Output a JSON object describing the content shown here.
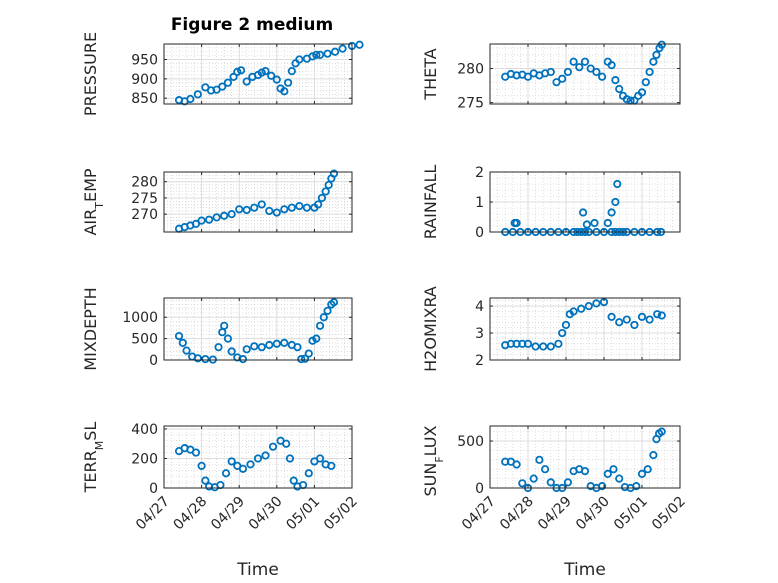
{
  "figure_title": "Figure 2 medium",
  "marker_color": "#0072BD",
  "chart_data": [
    {
      "type": "scatter",
      "title": "Figure 2 medium",
      "xlabel": "",
      "ylabel": "PRESSURE",
      "xlim": [
        "04/27",
        "05/02"
      ],
      "xticklabels": [],
      "ylim": [
        835,
        990
      ],
      "yticks": [
        850,
        900,
        950
      ],
      "grid": true,
      "x": [
        0.4,
        0.55,
        0.7,
        0.9,
        1.1,
        1.25,
        1.4,
        1.55,
        1.7,
        1.85,
        1.95,
        2.05,
        2.2,
        2.35,
        2.5,
        2.6,
        2.7,
        2.85,
        3.0,
        3.1,
        3.2,
        3.3,
        3.4,
        3.5,
        3.6,
        3.8,
        3.95,
        4.05,
        4.15,
        4.35,
        4.55,
        4.75,
        5.0,
        5.2
      ],
      "y": [
        845,
        842,
        848,
        860,
        878,
        870,
        872,
        880,
        890,
        905,
        918,
        922,
        893,
        905,
        910,
        916,
        920,
        908,
        898,
        875,
        868,
        890,
        920,
        940,
        950,
        952,
        958,
        962,
        962,
        965,
        970,
        978,
        985,
        988
      ]
    },
    {
      "type": "scatter",
      "xlabel": "",
      "ylabel": "THETA",
      "xlim": [
        "04/27",
        "05/02"
      ],
      "xticklabels": [],
      "ylim": [
        274.8,
        283.6
      ],
      "yticks": [
        275,
        280
      ],
      "grid": true,
      "x": [
        0.4,
        0.55,
        0.7,
        0.85,
        1.0,
        1.15,
        1.3,
        1.45,
        1.6,
        1.75,
        1.9,
        2.05,
        2.2,
        2.35,
        2.5,
        2.65,
        2.8,
        2.95,
        3.1,
        3.2,
        3.3,
        3.4,
        3.5,
        3.6,
        3.7,
        3.8,
        3.9,
        4.0,
        4.1,
        4.2,
        4.3,
        4.38,
        4.46,
        4.52
      ],
      "y": [
        278.8,
        279.2,
        279.0,
        279.1,
        278.8,
        279.3,
        279.0,
        279.3,
        279.5,
        278.0,
        278.5,
        279.5,
        281.0,
        280.2,
        281.0,
        280.0,
        279.5,
        278.8,
        281.0,
        280.5,
        278.3,
        277.0,
        276.0,
        275.5,
        275.3,
        275.3,
        276.0,
        276.5,
        278.0,
        279.5,
        281.0,
        282.0,
        283.0,
        283.5
      ]
    },
    {
      "type": "scatter",
      "xlabel": "",
      "ylabel": "AIR_TEMP",
      "xlim": [
        "04/27",
        "05/02"
      ],
      "xticklabels": [],
      "ylim": [
        264.5,
        283
      ],
      "yticks": [
        270,
        275,
        280
      ],
      "grid": true,
      "x": [
        0.4,
        0.55,
        0.7,
        0.85,
        1.0,
        1.2,
        1.4,
        1.6,
        1.8,
        2.0,
        2.2,
        2.4,
        2.6,
        2.8,
        3.0,
        3.2,
        3.4,
        3.6,
        3.8,
        4.0,
        4.1,
        4.2,
        4.3,
        4.38,
        4.45,
        4.52
      ],
      "y": [
        265.5,
        266,
        266.5,
        267,
        268,
        268.3,
        269,
        269.5,
        270,
        271.5,
        271.3,
        272,
        273,
        271,
        270.5,
        271.5,
        272,
        272.5,
        272,
        272,
        273,
        275,
        277,
        279,
        281,
        282.5
      ]
    },
    {
      "type": "scatter",
      "xlabel": "",
      "ylabel": "RAINFALL",
      "xlim": [
        "04/27",
        "05/02"
      ],
      "xticklabels": [],
      "ylim": [
        0,
        2
      ],
      "yticks": [
        0,
        1,
        2
      ],
      "grid": true,
      "x": [
        0.4,
        0.6,
        0.8,
        1.0,
        1.2,
        1.4,
        1.6,
        1.8,
        2.0,
        2.2,
        2.3,
        2.4,
        2.5,
        2.6,
        2.8,
        3.0,
        3.2,
        3.3,
        3.4,
        3.5,
        3.6,
        3.8,
        4.0,
        4.2,
        4.4,
        4.5,
        0.65,
        0.7,
        2.45,
        2.55,
        2.75,
        3.1,
        3.2,
        3.3,
        3.35
      ],
      "y": [
        0,
        0,
        0,
        0,
        0,
        0,
        0,
        0,
        0,
        0,
        0,
        0,
        0,
        0,
        0,
        0,
        0,
        0,
        0,
        0,
        0,
        0,
        0,
        0,
        0,
        0,
        0.3,
        0.3,
        0.65,
        0.25,
        0.3,
        0.3,
        0.65,
        1.0,
        1.6
      ]
    },
    {
      "type": "scatter",
      "xlabel": "",
      "ylabel": "MIXDEPTH",
      "xlim": [
        "04/27",
        "05/02"
      ],
      "xticklabels": [],
      "ylim": [
        0,
        1450
      ],
      "yticks": [
        0,
        500,
        1000
      ],
      "grid": true,
      "x": [
        0.4,
        0.5,
        0.6,
        0.75,
        0.9,
        1.1,
        1.3,
        1.45,
        1.55,
        1.6,
        1.7,
        1.8,
        1.95,
        2.1,
        2.2,
        2.4,
        2.6,
        2.8,
        3.0,
        3.2,
        3.4,
        3.55,
        3.65,
        3.75,
        3.85,
        3.95,
        4.05,
        4.15,
        4.25,
        4.35,
        4.45,
        4.52
      ],
      "y": [
        560,
        400,
        220,
        80,
        40,
        20,
        10,
        300,
        650,
        800,
        500,
        200,
        60,
        20,
        250,
        320,
        300,
        350,
        380,
        400,
        350,
        300,
        20,
        30,
        150,
        450,
        500,
        800,
        1000,
        1150,
        1300,
        1350
      ]
    },
    {
      "type": "scatter",
      "xlabel": "",
      "ylabel": "H2OMIXRA",
      "xlim": [
        "04/27",
        "05/02"
      ],
      "xticklabels": [],
      "ylim": [
        2,
        4.3
      ],
      "yticks": [
        2,
        3,
        4
      ],
      "grid": true,
      "x": [
        0.4,
        0.55,
        0.7,
        0.85,
        1.0,
        1.2,
        1.4,
        1.6,
        1.8,
        1.9,
        2.0,
        2.1,
        2.2,
        2.4,
        2.6,
        2.8,
        3.0,
        3.2,
        3.4,
        3.6,
        3.8,
        4.0,
        4.2,
        4.4,
        4.52
      ],
      "y": [
        2.55,
        2.6,
        2.6,
        2.6,
        2.6,
        2.5,
        2.5,
        2.5,
        2.6,
        3.0,
        3.3,
        3.7,
        3.8,
        3.9,
        4.0,
        4.1,
        4.15,
        3.6,
        3.4,
        3.5,
        3.3,
        3.6,
        3.5,
        3.7,
        3.65
      ]
    },
    {
      "type": "scatter",
      "xlabel": "Time",
      "ylabel": "TERR_MSL",
      "xlim": [
        "04/27",
        "05/02"
      ],
      "xticklabels": [
        "04/27",
        "04/28",
        "04/29",
        "04/30",
        "05/01",
        "05/02"
      ],
      "ylim": [
        0,
        420
      ],
      "yticks": [
        0,
        200,
        400
      ],
      "grid": true,
      "x": [
        0.4,
        0.55,
        0.7,
        0.85,
        1.0,
        1.1,
        1.2,
        1.35,
        1.5,
        1.65,
        1.8,
        1.95,
        2.1,
        2.3,
        2.5,
        2.7,
        2.9,
        3.1,
        3.25,
        3.35,
        3.45,
        3.55,
        3.7,
        3.85,
        4.0,
        4.15,
        4.3,
        4.45
      ],
      "y": [
        250,
        270,
        260,
        240,
        150,
        50,
        10,
        5,
        20,
        100,
        180,
        150,
        130,
        160,
        200,
        220,
        280,
        320,
        300,
        200,
        50,
        10,
        20,
        100,
        180,
        200,
        160,
        150
      ]
    },
    {
      "type": "scatter",
      "xlabel": "Time",
      "ylabel": "SUN_FLUX",
      "xlim": [
        "04/27",
        "05/02"
      ],
      "xticklabels": [
        "04/27",
        "04/28",
        "04/29",
        "04/30",
        "05/01",
        "05/02"
      ],
      "ylim": [
        0,
        660
      ],
      "yticks": [
        0,
        500
      ],
      "grid": true,
      "x": [
        0.4,
        0.55,
        0.7,
        0.85,
        1.0,
        1.15,
        1.3,
        1.45,
        1.6,
        1.75,
        1.9,
        2.05,
        2.2,
        2.35,
        2.5,
        2.65,
        2.8,
        2.95,
        3.1,
        3.25,
        3.4,
        3.55,
        3.7,
        3.85,
        4.0,
        4.15,
        4.3,
        4.38,
        4.45,
        4.52
      ],
      "y": [
        280,
        280,
        250,
        50,
        0,
        100,
        300,
        200,
        60,
        0,
        0,
        60,
        180,
        200,
        180,
        20,
        0,
        20,
        150,
        200,
        100,
        10,
        0,
        20,
        150,
        200,
        350,
        520,
        580,
        600
      ]
    }
  ]
}
